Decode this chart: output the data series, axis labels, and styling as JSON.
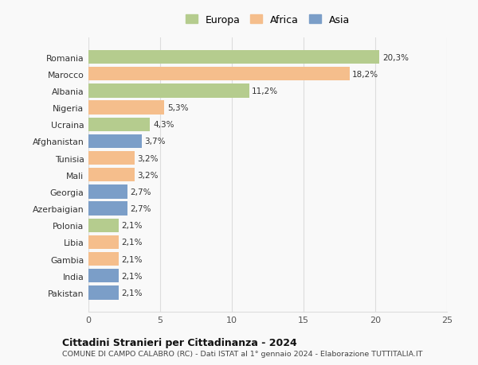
{
  "categories": [
    "Romania",
    "Marocco",
    "Albania",
    "Nigeria",
    "Ucraina",
    "Afghanistan",
    "Tunisia",
    "Mali",
    "Georgia",
    "Azerbaigian",
    "Polonia",
    "Libia",
    "Gambia",
    "India",
    "Pakistan"
  ],
  "values": [
    20.3,
    18.2,
    11.2,
    5.3,
    4.3,
    3.7,
    3.2,
    3.2,
    2.7,
    2.7,
    2.1,
    2.1,
    2.1,
    2.1,
    2.1
  ],
  "labels": [
    "20,3%",
    "18,2%",
    "11,2%",
    "5,3%",
    "4,3%",
    "3,7%",
    "3,2%",
    "3,2%",
    "2,7%",
    "2,7%",
    "2,1%",
    "2,1%",
    "2,1%",
    "2,1%",
    "2,1%"
  ],
  "continents": [
    "Europa",
    "Africa",
    "Europa",
    "Africa",
    "Europa",
    "Asia",
    "Africa",
    "Africa",
    "Asia",
    "Asia",
    "Europa",
    "Africa",
    "Africa",
    "Asia",
    "Asia"
  ],
  "colors": {
    "Europa": "#b5cc8e",
    "Africa": "#f5be8c",
    "Asia": "#7b9ec8"
  },
  "legend_labels": [
    "Europa",
    "Africa",
    "Asia"
  ],
  "title_bold": "Cittadini Stranieri per Cittadinanza - 2024",
  "subtitle": "COMUNE DI CAMPO CALABRO (RC) - Dati ISTAT al 1° gennaio 2024 - Elaborazione TUTTITALIA.IT",
  "xlim": [
    0,
    25
  ],
  "xticks": [
    0,
    5,
    10,
    15,
    20,
    25
  ],
  "background_color": "#f9f9f9",
  "grid_color": "#dddddd",
  "bar_height": 0.82
}
